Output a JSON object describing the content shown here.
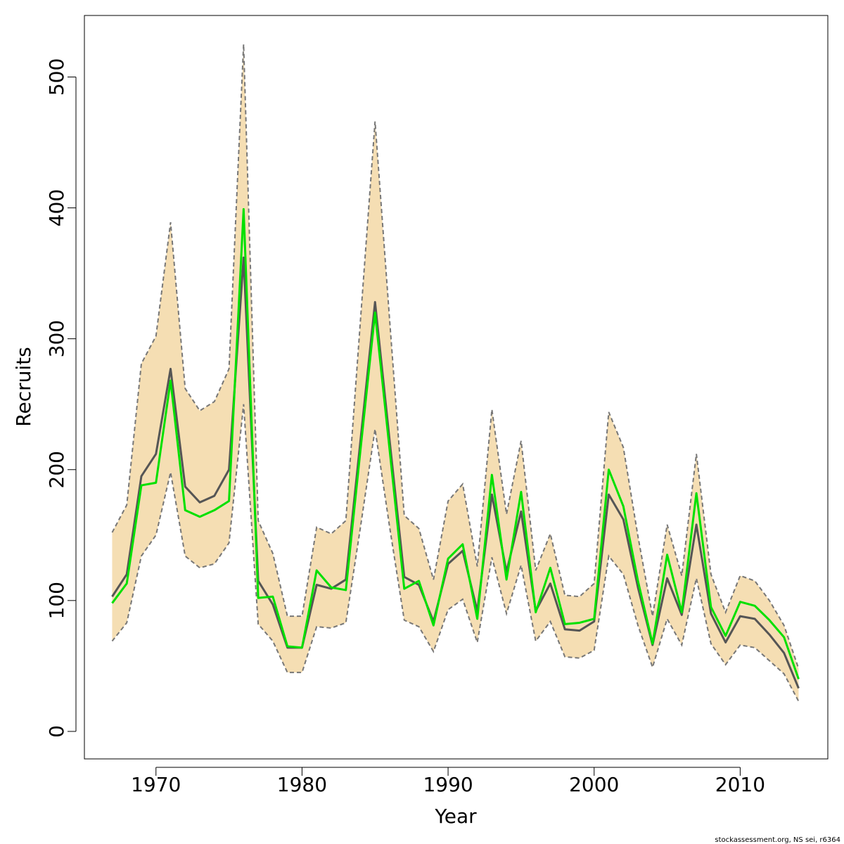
{
  "chart_data": {
    "type": "line",
    "x_label": "Year",
    "y_label": "Recruits",
    "footer": "stockassessment.org, NS sei, r6364",
    "x": [
      1967,
      1968,
      1969,
      1970,
      1971,
      1972,
      1973,
      1974,
      1975,
      1976,
      1977,
      1978,
      1979,
      1980,
      1981,
      1982,
      1983,
      1984,
      1985,
      1986,
      1987,
      1988,
      1989,
      1990,
      1991,
      1992,
      1993,
      1994,
      1995,
      1996,
      1997,
      1998,
      1999,
      2000,
      2001,
      2002,
      2003,
      2004,
      2005,
      2006,
      2007,
      2008,
      2009,
      2010,
      2011,
      2012,
      2013,
      2014
    ],
    "band": {
      "color": "#f5deb3",
      "line_color": "#777777",
      "upper": [
        152,
        173,
        281,
        302,
        389,
        262,
        245,
        252,
        277,
        525,
        161,
        136,
        88,
        88,
        156,
        151,
        161,
        314,
        466,
        314,
        165,
        155,
        116,
        176,
        189,
        126,
        246,
        166,
        222,
        123,
        151,
        104,
        103,
        113,
        244,
        217,
        149,
        88,
        158,
        119,
        212,
        120,
        91,
        119,
        115,
        100,
        81,
        48
      ],
      "lower": [
        69,
        83,
        134,
        150,
        198,
        134,
        125,
        128,
        144,
        250,
        82,
        69,
        45,
        45,
        80,
        79,
        83,
        156,
        231,
        156,
        85,
        80,
        61,
        93,
        101,
        68,
        133,
        90,
        127,
        69,
        84,
        57,
        56,
        62,
        134,
        120,
        81,
        49,
        86,
        66,
        117,
        67,
        51,
        66,
        64,
        54,
        44,
        23
      ]
    },
    "series": [
      {
        "color": "#555555",
        "values": [
          103,
          120,
          195,
          212,
          277,
          187,
          175,
          180,
          200,
          362,
          115,
          97,
          64,
          64,
          112,
          109,
          116,
          222,
          328,
          222,
          118,
          112,
          84,
          128,
          138,
          92,
          181,
          122,
          168,
          92,
          113,
          78,
          77,
          84,
          181,
          162,
          110,
          66,
          117,
          89,
          158,
          90,
          68,
          88,
          86,
          74,
          60,
          33
        ]
      },
      {
        "color": "#00e000",
        "values": [
          98,
          113,
          188,
          190,
          268,
          169,
          164,
          169,
          176,
          399,
          102,
          103,
          65,
          64,
          123,
          110,
          108,
          215,
          320,
          215,
          109,
          115,
          81,
          132,
          143,
          86,
          196,
          116,
          183,
          91,
          125,
          82,
          83,
          86,
          200,
          172,
          115,
          67,
          135,
          91,
          182,
          95,
          73,
          99,
          96,
          85,
          72,
          40
        ]
      }
    ],
    "xlim": [
      1965.1,
      2016
    ],
    "ylim": [
      -21,
      547
    ],
    "xticks": [
      1970,
      1980,
      1990,
      2000,
      2010
    ],
    "yticks": [
      0,
      100,
      200,
      300,
      400,
      500
    ]
  }
}
